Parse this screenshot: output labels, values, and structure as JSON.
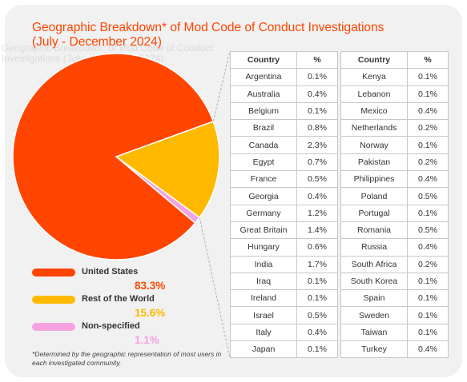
{
  "title_line1": "Geographic Breakdown* of Mod Code of Conduct Investigations",
  "title_line2": "(July - December 2024)",
  "ghost_text": "Geographic Breakdown* of Mod Code of Conduct Investigations (July - December 2024)",
  "footnote": "*Determined by the geographic representation of most users in each investigated community.",
  "table": {
    "headers": [
      "Country",
      "%",
      "Country",
      "%"
    ],
    "rows": [
      [
        "Argentina",
        "0.1%",
        "Kenya",
        "0.1%"
      ],
      [
        "Australia",
        "0.4%",
        "Lebanon",
        "0.1%"
      ],
      [
        "Belgium",
        "0.1%",
        "Mexico",
        "0.4%"
      ],
      [
        "Brazil",
        "0.8%",
        "Netherlands",
        "0.2%"
      ],
      [
        "Canada",
        "2.3%",
        "Norway",
        "0.1%"
      ],
      [
        "Egypt",
        "0.7%",
        "Pakistan",
        "0.2%"
      ],
      [
        "France",
        "0.5%",
        "Philippines",
        "0.4%"
      ],
      [
        "Georgia",
        "0.4%",
        "Poland",
        "0.5%"
      ],
      [
        "Germany",
        "1.2%",
        "Portugal",
        "0.1%"
      ],
      [
        "Great Britain",
        "1.4%",
        "Romania",
        "0.5%"
      ],
      [
        "Hungary",
        "0.6%",
        "Russia",
        "0.4%"
      ],
      [
        "India",
        "1.7%",
        "South Africa",
        "0.2%"
      ],
      [
        "Iraq",
        "0.1%",
        "South Korea",
        "0.1%"
      ],
      [
        "Ireland",
        "0.1%",
        "Spain",
        "0.1%"
      ],
      [
        "Israel",
        "0.5%",
        "Sweden",
        "0.1%"
      ],
      [
        "Italy",
        "0.4%",
        "Taiwan",
        "0.1%"
      ],
      [
        "Japan",
        "0.1%",
        "Turkey",
        "0.4%"
      ]
    ]
  },
  "chart_data": {
    "type": "pie",
    "title": "Geographic Breakdown* of Mod Code of Conduct Investigations (July - December 2024)",
    "slices": [
      {
        "label": "United States",
        "value": 83.3,
        "display": "83.3%",
        "color": "#ff4500"
      },
      {
        "label": "Rest of the World",
        "value": 15.6,
        "display": "15.6%",
        "color": "#ffba00"
      },
      {
        "label": "Non-specified",
        "value": 1.1,
        "display": "1.1%",
        "color": "#f5a3e0"
      }
    ],
    "legend_placement": "bottom-left"
  }
}
